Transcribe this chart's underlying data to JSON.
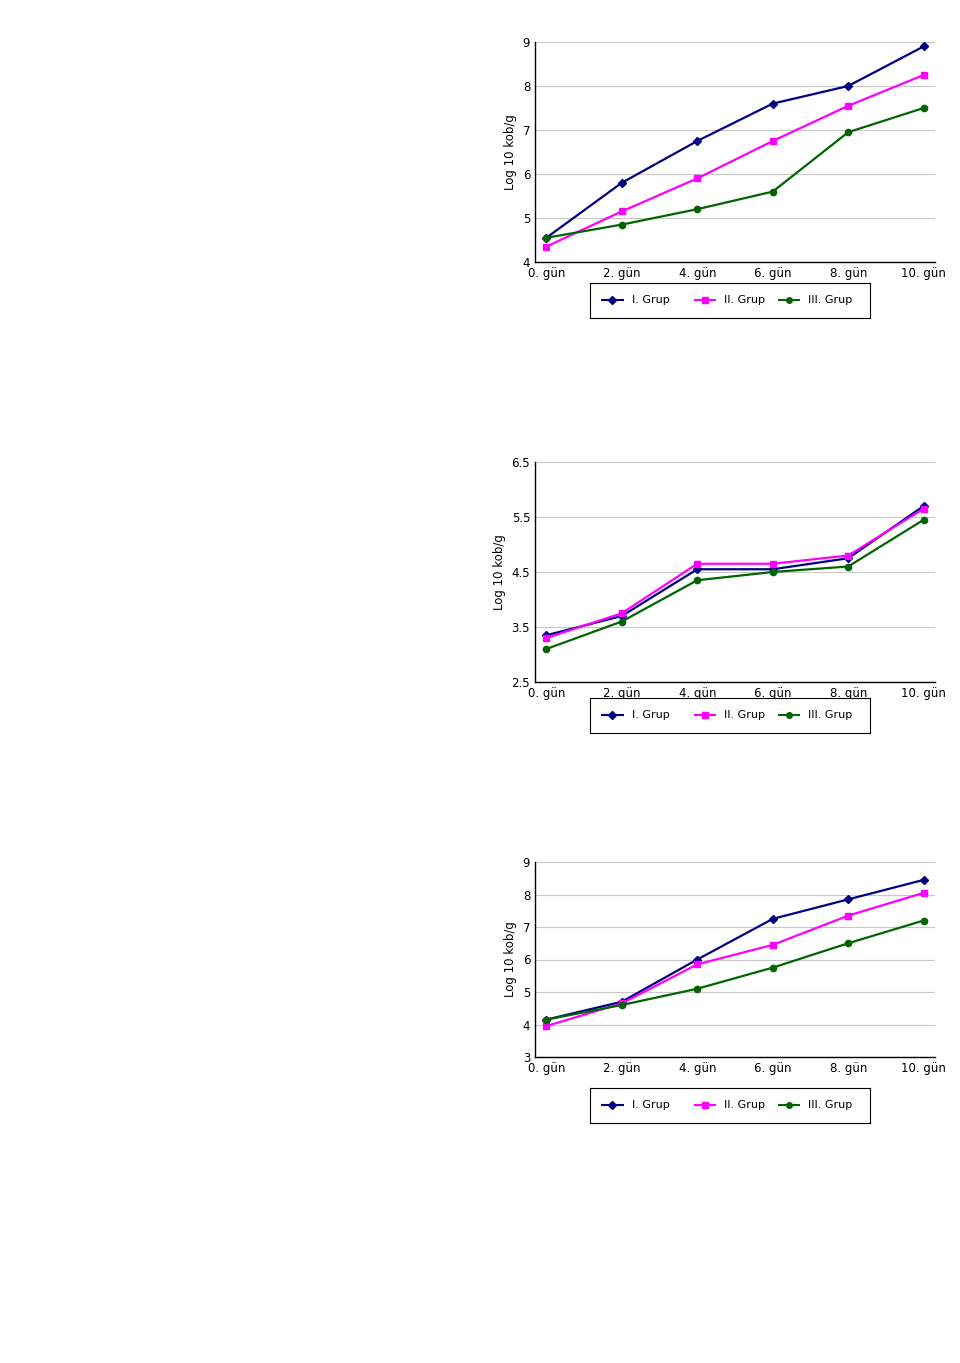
{
  "x_labels": [
    "0. gün",
    "2. gün",
    "4. gün",
    "6. gün",
    "8. gün",
    "10. gün"
  ],
  "x_values": [
    0,
    2,
    4,
    6,
    8,
    10
  ],
  "chart1": {
    "ylabel": "Log 10 kob/g",
    "ylim": [
      4,
      9
    ],
    "yticks": [
      4,
      5,
      6,
      7,
      8,
      9
    ],
    "grup1": [
      4.55,
      5.8,
      6.75,
      7.6,
      8.0,
      8.9
    ],
    "grup2": [
      4.35,
      5.15,
      5.9,
      6.75,
      7.55,
      8.25
    ],
    "grup3": [
      4.55,
      4.85,
      5.2,
      5.6,
      6.95,
      7.5
    ]
  },
  "chart2": {
    "ylabel": "Log 10 kob/g",
    "ylim": [
      2.5,
      6.5
    ],
    "yticks": [
      2.5,
      3.5,
      4.5,
      5.5,
      6.5
    ],
    "grup1": [
      3.35,
      3.7,
      4.55,
      4.55,
      4.75,
      5.7
    ],
    "grup2": [
      3.3,
      3.75,
      4.65,
      4.65,
      4.8,
      5.65
    ],
    "grup3": [
      3.1,
      3.6,
      4.35,
      4.5,
      4.6,
      5.45
    ]
  },
  "chart3": {
    "ylabel": "Log 10 kob/g",
    "ylim": [
      3,
      9
    ],
    "yticks": [
      3,
      4,
      5,
      6,
      7,
      8,
      9
    ],
    "grup1": [
      4.15,
      4.7,
      6.0,
      7.25,
      7.85,
      8.45
    ],
    "grup2": [
      3.95,
      4.65,
      5.85,
      6.45,
      7.35,
      8.05
    ],
    "grup3": [
      4.15,
      4.6,
      5.1,
      5.75,
      6.5,
      7.2
    ]
  },
  "color_grup1": "#000080",
  "color_grup2": "#FF00FF",
  "color_grup3": "#006400",
  "legend_labels": [
    "I. Grup",
    "II. Grup",
    "III. Grup"
  ],
  "background_color": "#ffffff",
  "grid_color": "#c8c8c8"
}
